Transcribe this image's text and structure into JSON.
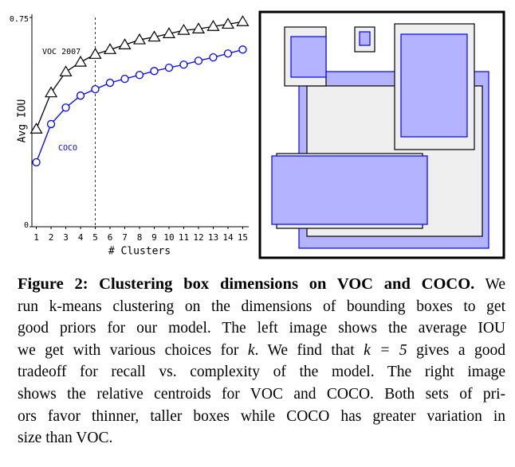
{
  "chart_data": {
    "type": "line",
    "x": [
      1,
      2,
      3,
      4,
      5,
      6,
      7,
      8,
      9,
      10,
      11,
      12,
      13,
      14,
      15
    ],
    "xlim": [
      0.7,
      15.3
    ],
    "xticks": [
      1,
      2,
      3,
      4,
      5,
      6,
      7,
      8,
      9,
      10,
      11,
      12,
      13,
      14,
      15
    ],
    "ylim": [
      0,
      0.75
    ],
    "yticks": [
      0,
      0.75
    ],
    "xlabel": "# Clusters",
    "ylabel": "Avg IOU",
    "reference_x": 5,
    "series": [
      {
        "name": "VOC 2007",
        "color": "#000000",
        "marker": "triangle",
        "values": [
          0.35,
          0.48,
          0.555,
          0.59,
          0.618,
          0.635,
          0.652,
          0.67,
          0.68,
          0.692,
          0.704,
          0.709,
          0.718,
          0.726,
          0.735
        ]
      },
      {
        "name": "COCO",
        "color": "#0000ff",
        "marker": "circle",
        "values": [
          0.231,
          0.368,
          0.427,
          0.47,
          0.493,
          0.516,
          0.53,
          0.544,
          0.558,
          0.57,
          0.581,
          0.595,
          0.607,
          0.621,
          0.635
        ]
      }
    ]
  },
  "caption": {
    "label": "Figure 2:",
    "title": "Clustering box dimensions on VOC and COCO.",
    "lines": [
      "We",
      "run k-means clustering on the dimensions of bounding boxes to get",
      "good priors for our model. The left image shows the average IOU",
      [
        "we get with various choices for ",
        "k",
        ". We find that ",
        "k = 5",
        " gives a good"
      ],
      "tradeoff for recall vs. complexity of the model. The right image",
      "shows the relative centroids for VOC and COCO. Both sets of pri-",
      "ors favor thinner, taller boxes while COCO has greater variation in",
      "size than VOC."
    ]
  }
}
